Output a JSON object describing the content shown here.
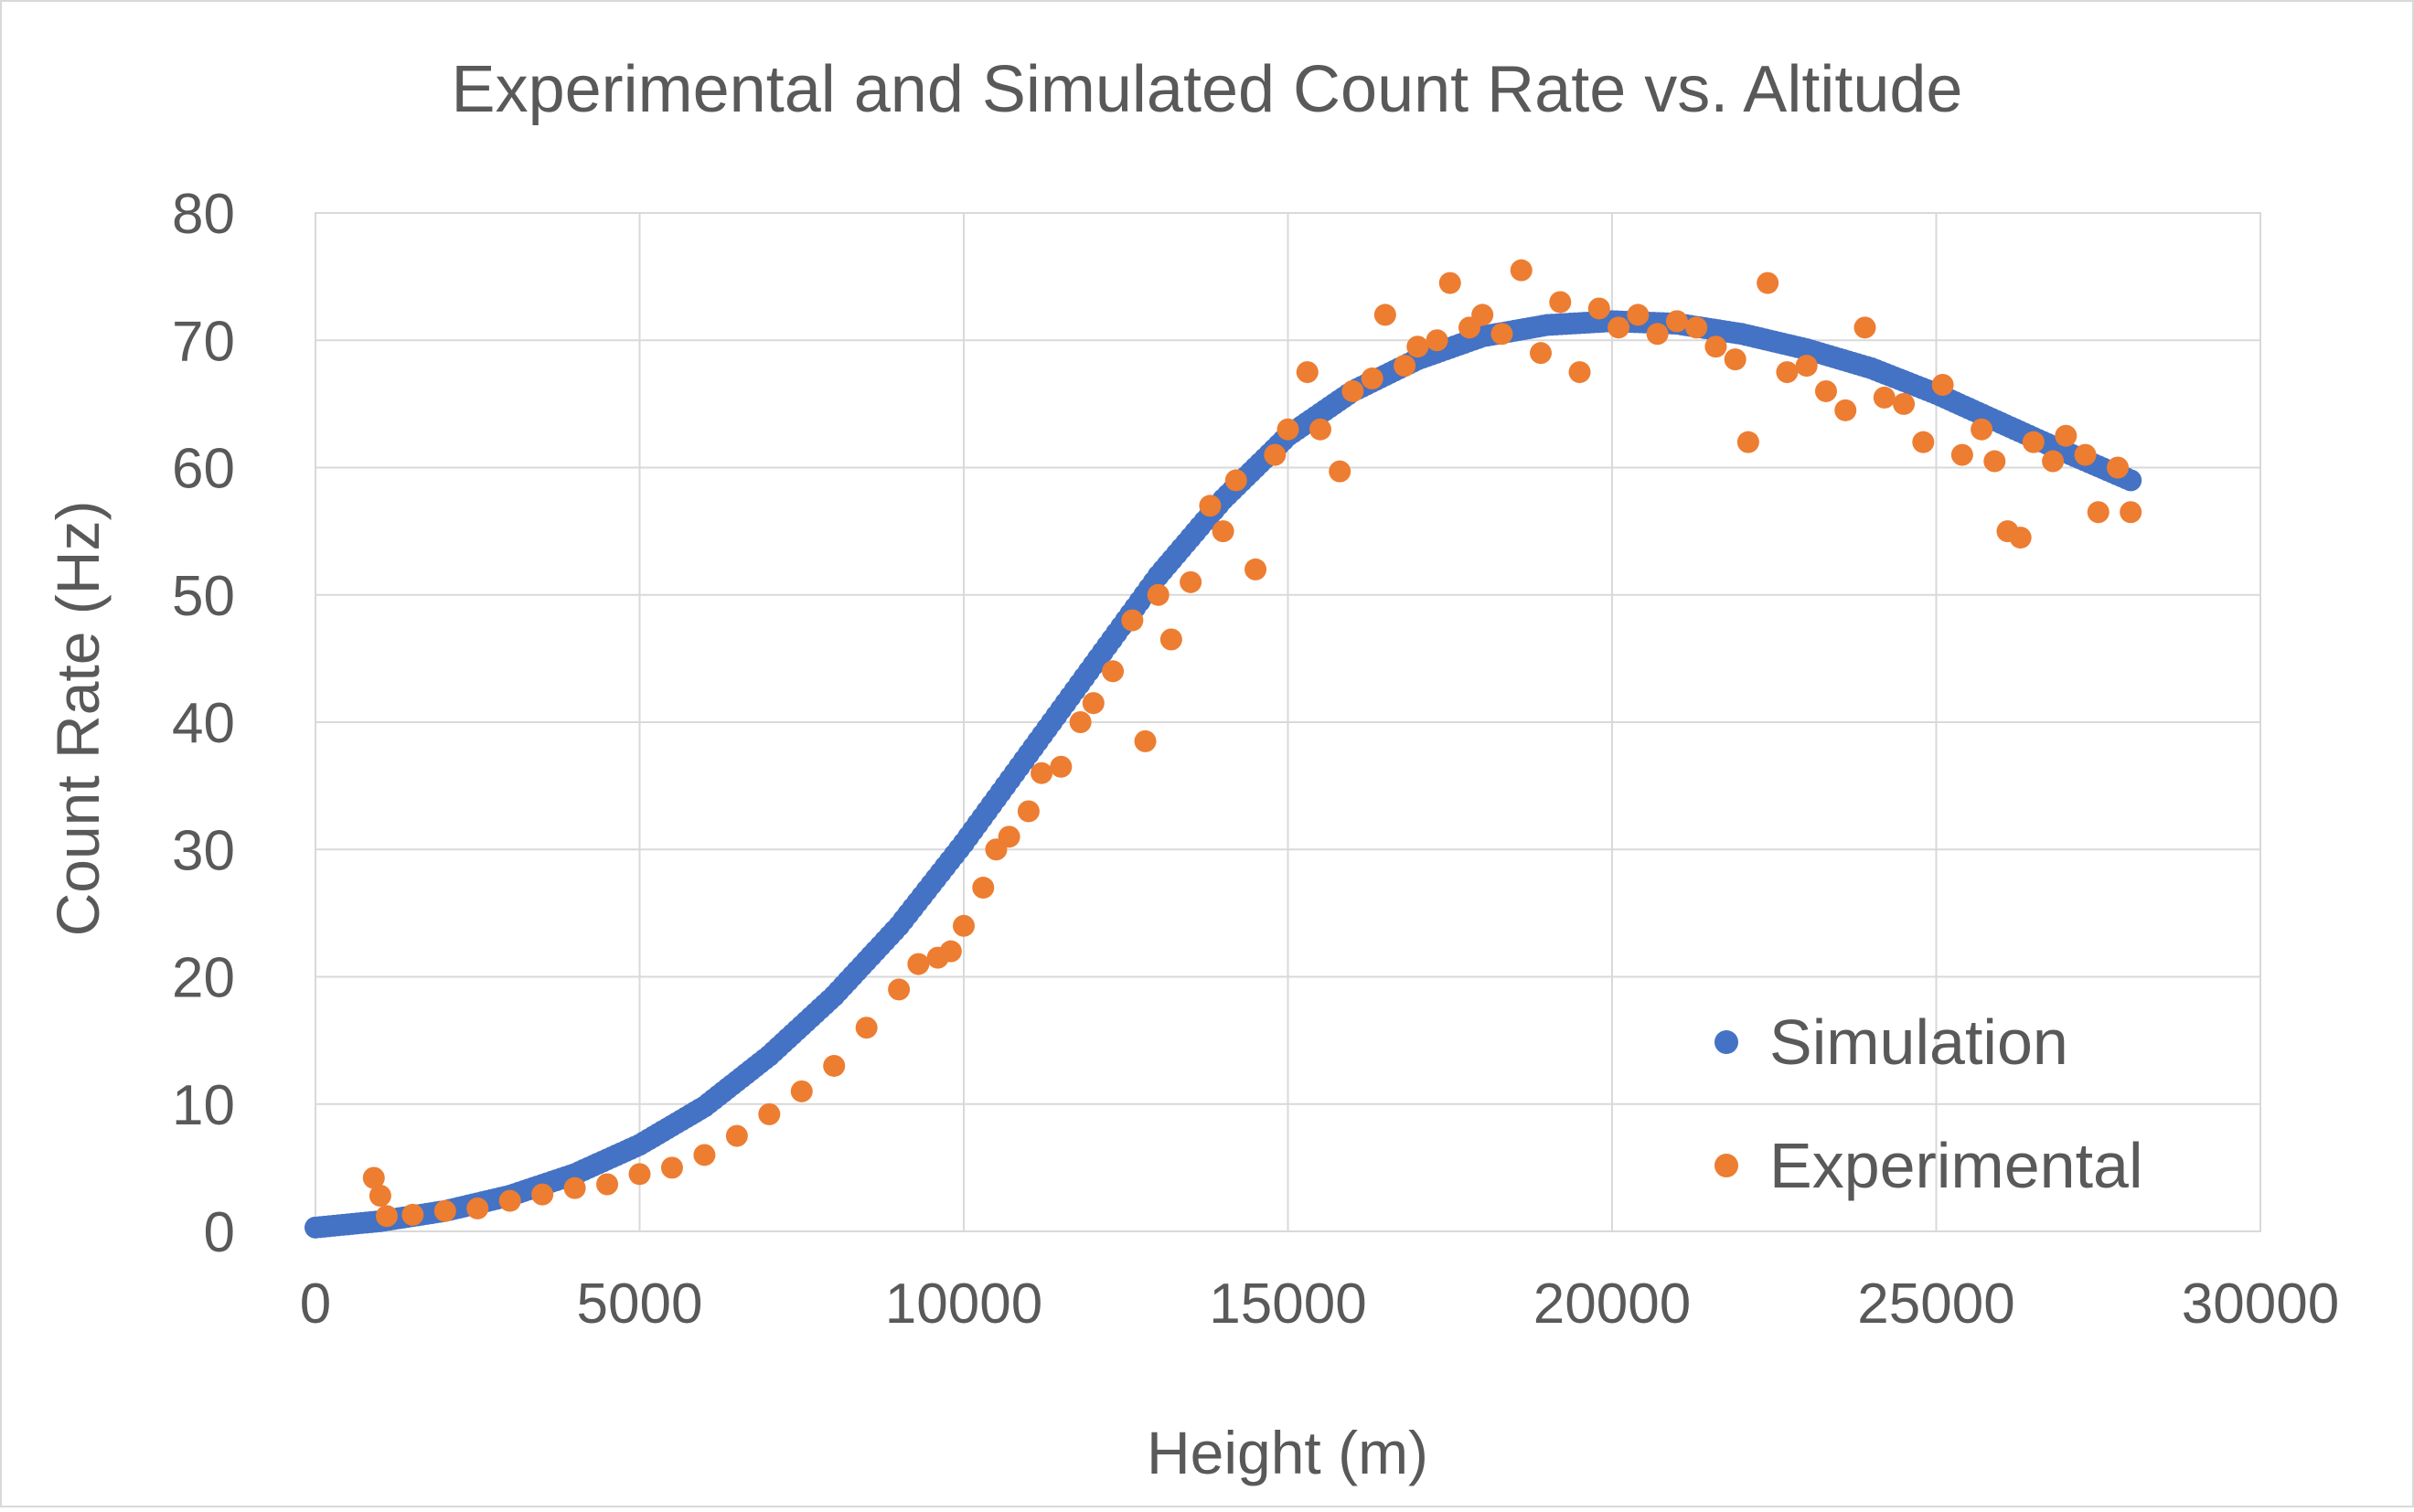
{
  "chart_data": {
    "type": "scatter",
    "title": "Experimental and Simulated Count Rate vs. Altitude",
    "xlabel": "Height (m)",
    "ylabel": "Count Rate (Hz)",
    "xlim": [
      0,
      30000
    ],
    "ylim": [
      0,
      80
    ],
    "xticks": [
      0,
      5000,
      10000,
      15000,
      20000,
      25000,
      30000
    ],
    "yticks": [
      0,
      10,
      20,
      30,
      40,
      50,
      60,
      70,
      80
    ],
    "grid": true,
    "legend_position": "bottom-right",
    "series": [
      {
        "name": "Simulation",
        "color": "#4472C4",
        "x": [
          0,
          1000,
          2000,
          3000,
          4000,
          5000,
          6000,
          7000,
          8000,
          9000,
          10000,
          11000,
          12000,
          13000,
          14000,
          15000,
          16000,
          17000,
          18000,
          19000,
          20000,
          21000,
          22000,
          23000,
          24000,
          25000,
          26000,
          27000,
          28000
        ],
        "y": [
          0.3,
          0.8,
          1.6,
          2.8,
          4.5,
          6.8,
          9.8,
          13.8,
          18.5,
          24.0,
          30.5,
          37.5,
          44.5,
          51.5,
          57.5,
          62.5,
          66.0,
          68.5,
          70.3,
          71.2,
          71.5,
          71.3,
          70.5,
          69.3,
          67.8,
          65.8,
          63.5,
          61.2,
          59.0
        ]
      },
      {
        "name": "Experimental",
        "color": "#ED7D31",
        "x": [
          900,
          1000,
          1100,
          1500,
          2000,
          2500,
          3000,
          3500,
          4000,
          4500,
          5000,
          5500,
          6000,
          6500,
          7000,
          7500,
          8000,
          8500,
          9000,
          9300,
          9600,
          9800,
          10000,
          10300,
          10500,
          10700,
          11000,
          11200,
          11500,
          11800,
          12000,
          12300,
          12600,
          12800,
          13000,
          13200,
          13500,
          13800,
          14000,
          14200,
          14500,
          14800,
          15000,
          15300,
          15500,
          15800,
          16000,
          16300,
          16500,
          16800,
          17000,
          17300,
          17500,
          17800,
          18000,
          18300,
          18600,
          18900,
          19200,
          19500,
          19800,
          20100,
          20400,
          20700,
          21000,
          21300,
          21600,
          21900,
          22100,
          22400,
          22700,
          23000,
          23300,
          23600,
          23900,
          24200,
          24500,
          24800,
          25100,
          25400,
          25700,
          25900,
          26100,
          26300,
          26500,
          26800,
          27000,
          27300,
          27500,
          27800,
          28000
        ],
        "y": [
          4.2,
          2.8,
          1.2,
          1.3,
          1.6,
          1.8,
          2.4,
          2.9,
          3.4,
          3.7,
          4.5,
          5.0,
          6.0,
          7.5,
          9.2,
          11.0,
          13.0,
          16.0,
          19.0,
          21.0,
          21.5,
          22.0,
          24.0,
          27.0,
          30.0,
          31.0,
          33.0,
          36.0,
          36.5,
          40.0,
          41.5,
          44.0,
          48.0,
          38.5,
          50.0,
          46.5,
          51.0,
          57.0,
          55.0,
          59.0,
          52.0,
          61.0,
          63.0,
          67.5,
          63.0,
          59.7,
          66.0,
          67.0,
          72.0,
          68.0,
          69.5,
          70.0,
          74.5,
          71.0,
          72.0,
          70.5,
          75.5,
          69.0,
          73.0,
          67.5,
          72.5,
          71.0,
          72.0,
          70.5,
          71.5,
          71.0,
          69.5,
          68.5,
          62.0,
          74.5,
          67.5,
          68.0,
          66.0,
          64.5,
          71.0,
          65.5,
          65.0,
          62.0,
          66.5,
          61.0,
          63.0,
          60.5,
          55.0,
          54.5,
          62.0,
          60.5,
          62.5,
          61.0,
          56.5,
          60.0,
          56.5
        ]
      }
    ]
  }
}
